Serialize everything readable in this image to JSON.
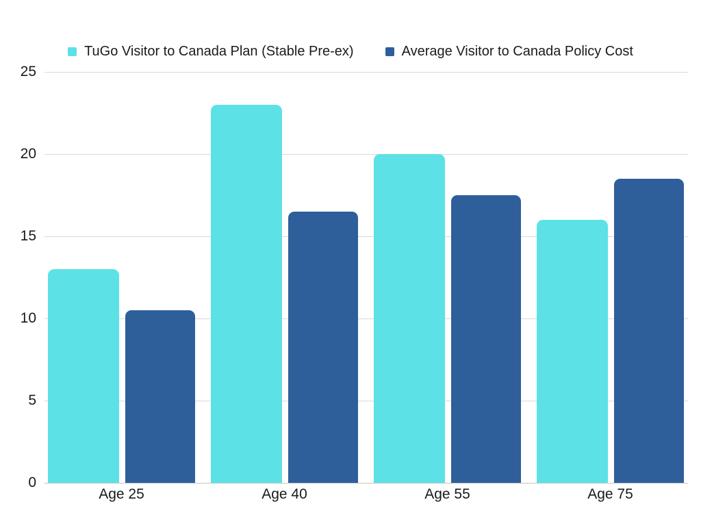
{
  "chart_data": {
    "type": "bar",
    "categories": [
      "Age 25",
      "Age 40",
      "Age 55",
      "Age 75"
    ],
    "series": [
      {
        "name": "TuGo Visitor to Canada Plan (Stable Pre-ex)",
        "color": "#5CE1E6",
        "values": [
          13,
          23,
          20,
          16
        ]
      },
      {
        "name": "Average Visitor to Canada Policy Cost",
        "color": "#2E5F9A",
        "values": [
          10.5,
          16.5,
          17.5,
          18.5
        ]
      }
    ],
    "ylim": [
      0,
      25
    ],
    "yticks": [
      0,
      5,
      10,
      15,
      20,
      25
    ],
    "grid": true,
    "legend_position": "top",
    "colors": {
      "background": "#FFFFFF",
      "gridline": "#D9D9D9",
      "baseline": "#C6C6C6",
      "text": "#1A1A1A"
    }
  }
}
